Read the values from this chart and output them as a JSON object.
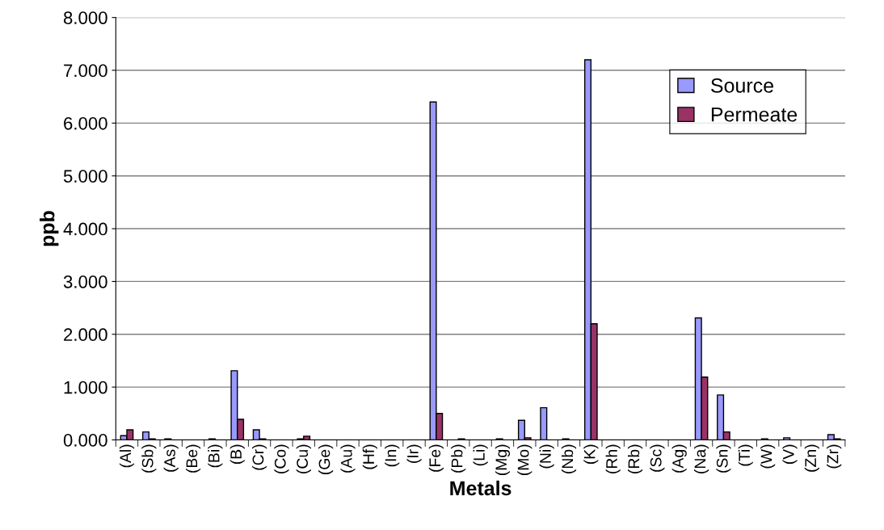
{
  "chart_data": {
    "type": "bar",
    "xlabel": "Metals",
    "ylabel": "ppb",
    "categories": [
      "(Al)",
      "(Sb)",
      "(As)",
      "(Be)",
      "(Bi)",
      "(B)",
      "(Cr)",
      "(Co)",
      "(Cu)",
      "(Ge)",
      "(Au)",
      "(Hf)",
      "(In)",
      "(Ir)",
      "(Fe)",
      "(Pb)",
      "(Li)",
      "(Mg)",
      "(Mo)",
      "(Ni)",
      "(Nb)",
      "(K)",
      "(Rh)",
      "(Rb)",
      "(Sc)",
      "(Ag)",
      "(Na)",
      "(Sn)",
      "(Ti)",
      "(W)",
      "(V)",
      "(Zn)",
      "(Zr)"
    ],
    "series": [
      {
        "name": "Source",
        "color": "#9999ff",
        "values": [
          0.08,
          0.15,
          0.02,
          0,
          0.02,
          1.31,
          0.19,
          0,
          0.02,
          0,
          0,
          0,
          0,
          0,
          6.4,
          0,
          0,
          0.02,
          0.37,
          0.61,
          0.02,
          7.2,
          0,
          0,
          0,
          0,
          2.31,
          0.85,
          0,
          0.02,
          0.04,
          0,
          0.1
        ]
      },
      {
        "name": "Permeate",
        "color": "#993366",
        "values": [
          0.19,
          0.02,
          0,
          0,
          0,
          0.39,
          0.02,
          0,
          0.07,
          0,
          0,
          0,
          0,
          0,
          0.5,
          0.02,
          0,
          0,
          0.04,
          0,
          0,
          2.2,
          0,
          0,
          0,
          0,
          1.19,
          0.15,
          0,
          0,
          0,
          0,
          0.02
        ]
      }
    ],
    "ylim": [
      0,
      8
    ],
    "yticks": [
      {
        "value": 0,
        "label": "0.000"
      },
      {
        "value": 1,
        "label": "1.000"
      },
      {
        "value": 2,
        "label": "2.000"
      },
      {
        "value": 3,
        "label": "3.000"
      },
      {
        "value": 4,
        "label": "4.000"
      },
      {
        "value": 5,
        "label": "5.000"
      },
      {
        "value": 6,
        "label": "6.000"
      },
      {
        "value": 7,
        "label": "7.000"
      },
      {
        "value": 8,
        "label": "8.000"
      }
    ],
    "grid": "y",
    "legend": "top right"
  }
}
